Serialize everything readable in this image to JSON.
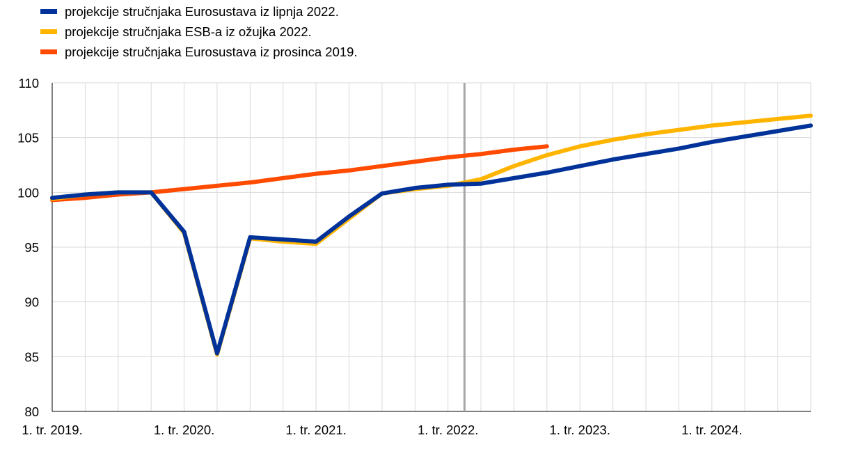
{
  "chart_data": {
    "type": "line",
    "title": "",
    "xlabel": "",
    "ylabel": "",
    "ylim": [
      80,
      110
    ],
    "yticks": [
      80,
      85,
      90,
      95,
      100,
      105,
      110
    ],
    "x_quarters": [
      "2019Q1",
      "2019Q2",
      "2019Q3",
      "2019Q4",
      "2020Q1",
      "2020Q2",
      "2020Q3",
      "2020Q4",
      "2021Q1",
      "2021Q2",
      "2021Q3",
      "2021Q4",
      "2022Q1",
      "2022Q2",
      "2022Q3",
      "2022Q4",
      "2023Q1",
      "2023Q2",
      "2023Q3",
      "2023Q4",
      "2024Q1",
      "2024Q2",
      "2024Q3",
      "2024Q4"
    ],
    "xtick_labels": [
      "1. tr. 2019.",
      "1. tr. 2020.",
      "1. tr. 2021.",
      "1. tr. 2022.",
      "1. tr. 2023.",
      "1. tr. 2024."
    ],
    "xtick_positions": [
      "2019Q1",
      "2020Q1",
      "2021Q1",
      "2022Q1",
      "2023Q1",
      "2024Q1"
    ],
    "grid": true,
    "legend_position": "top-left",
    "vertical_marker": "2022Q1",
    "series": [
      {
        "name": "projekcije stručnjaka Eurosustava iz prosinca 2019.",
        "color": "#ff4b00",
        "values": [
          99.3,
          99.5,
          99.8,
          100.0,
          100.3,
          100.6,
          100.9,
          101.3,
          101.7,
          102.0,
          102.4,
          102.8,
          103.2,
          103.5,
          103.9,
          104.2,
          null,
          null,
          null,
          null,
          null,
          null,
          null,
          null
        ]
      },
      {
        "name": "projekcije stručnjaka ESB-a iz ožujka 2022.",
        "color": "#ffb400",
        "values": [
          99.4,
          99.8,
          100.0,
          100.0,
          96.3,
          85.2,
          95.8,
          95.5,
          95.3,
          97.6,
          99.9,
          100.3,
          100.6,
          101.2,
          102.4,
          103.4,
          104.2,
          104.8,
          105.3,
          105.7,
          106.1,
          106.4,
          106.7,
          107.0
        ]
      },
      {
        "name": "projekcije stručnjaka Eurosustava iz lipnja 2022.",
        "color": "#003299",
        "values": [
          99.5,
          99.8,
          100.0,
          100.0,
          96.4,
          85.3,
          95.9,
          95.7,
          95.5,
          97.8,
          99.9,
          100.4,
          100.7,
          100.8,
          101.3,
          101.8,
          102.4,
          103.0,
          103.5,
          104.0,
          104.6,
          105.1,
          105.6,
          106.1
        ]
      }
    ]
  },
  "legend": [
    {
      "label": "projekcije stručnjaka Eurosustava iz lipnja 2022.",
      "color": "#003299"
    },
    {
      "label": "projekcije stručnjaka ESB-a iz ožujka 2022.",
      "color": "#ffb400"
    },
    {
      "label": "projekcije stručnjaka Eurosustava iz prosinca 2019.",
      "color": "#ff4b00"
    }
  ]
}
